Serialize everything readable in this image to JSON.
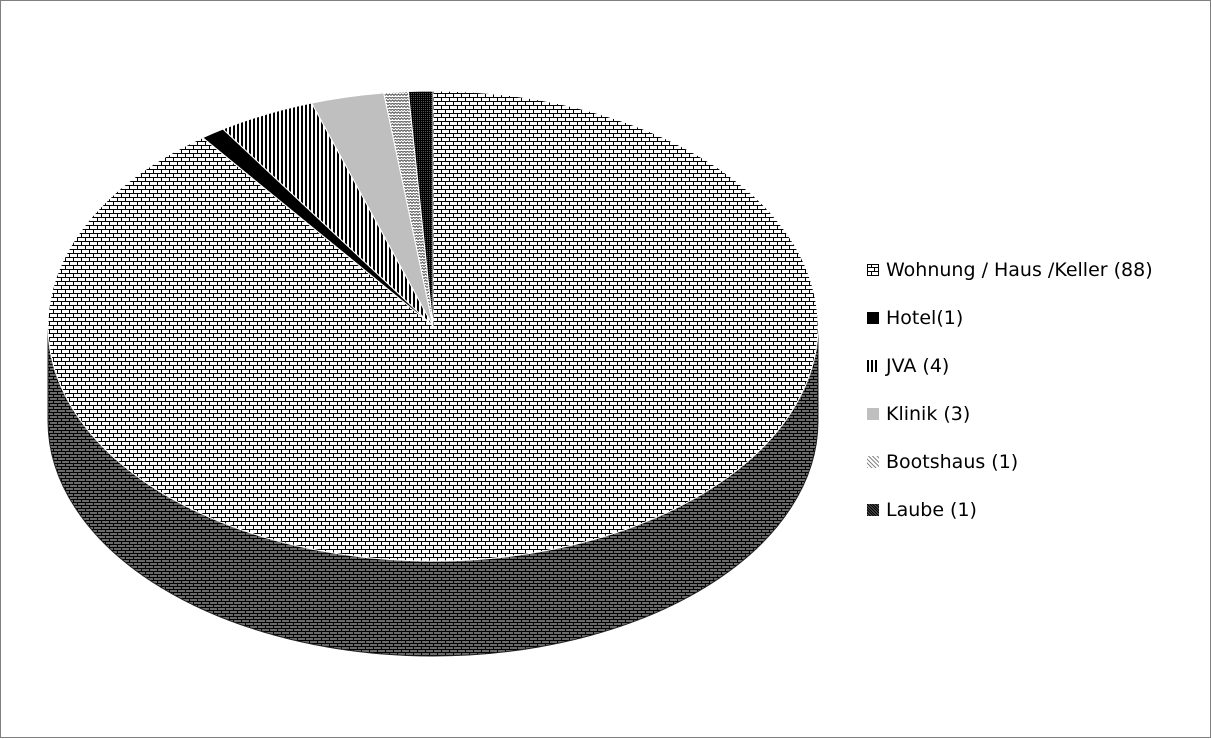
{
  "chart_data": {
    "type": "pie",
    "title": "",
    "categories": [
      "Wohnung / Haus /Keller (88)",
      "Hotel(1)",
      "JVA (4)",
      "Klinik (3)",
      "Bootshaus (1)",
      "Laube (1)"
    ],
    "values": [
      88,
      1,
      4,
      3,
      1,
      1
    ],
    "legend_position": "right",
    "style": "3d",
    "slices": [
      {
        "label": "Wohnung / Haus /Keller (88)",
        "value": 88,
        "pattern": "brick",
        "color": "#000000"
      },
      {
        "label": "Hotel(1)",
        "value": 1,
        "pattern": "solid",
        "color": "#000000"
      },
      {
        "label": "JVA (4)",
        "value": 4,
        "pattern": "vertical-lines",
        "color": "#000000"
      },
      {
        "label": "Klinik (3)",
        "value": 3,
        "pattern": "solid",
        "color": "#bfbfbf"
      },
      {
        "label": "Bootshaus (1)",
        "value": 1,
        "pattern": "wave",
        "color": "#7f7f7f"
      },
      {
        "label": "Laube (1)",
        "value": 1,
        "pattern": "dense-checker",
        "color": "#000000"
      }
    ]
  }
}
